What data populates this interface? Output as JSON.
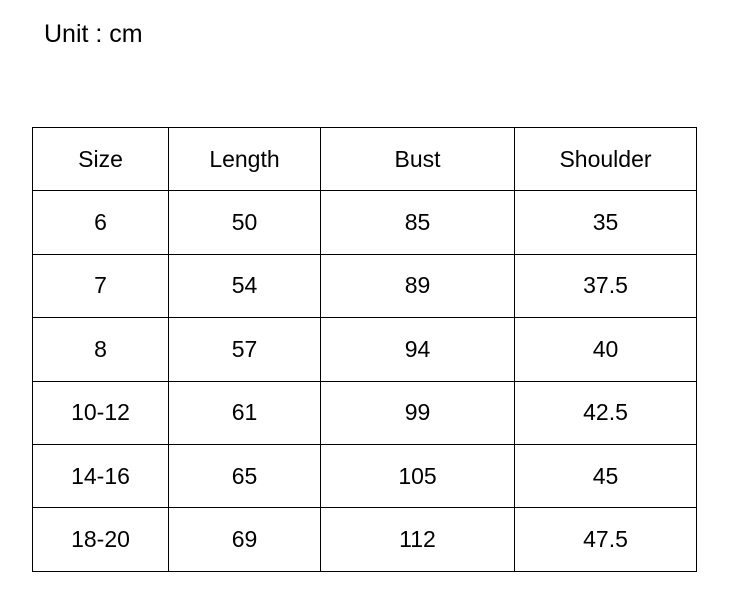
{
  "unit_label": "Unit : cm",
  "table": {
    "headers": [
      "Size",
      "Length",
      "Bust",
      "Shoulder"
    ],
    "rows": [
      [
        "6",
        "50",
        "85",
        "35"
      ],
      [
        "7",
        "54",
        "89",
        "37.5"
      ],
      [
        "8",
        "57",
        "94",
        "40"
      ],
      [
        "10-12",
        "61",
        "99",
        "42.5"
      ],
      [
        "14-16",
        "65",
        "105",
        "45"
      ],
      [
        "18-20",
        "69",
        "112",
        "47.5"
      ]
    ]
  }
}
